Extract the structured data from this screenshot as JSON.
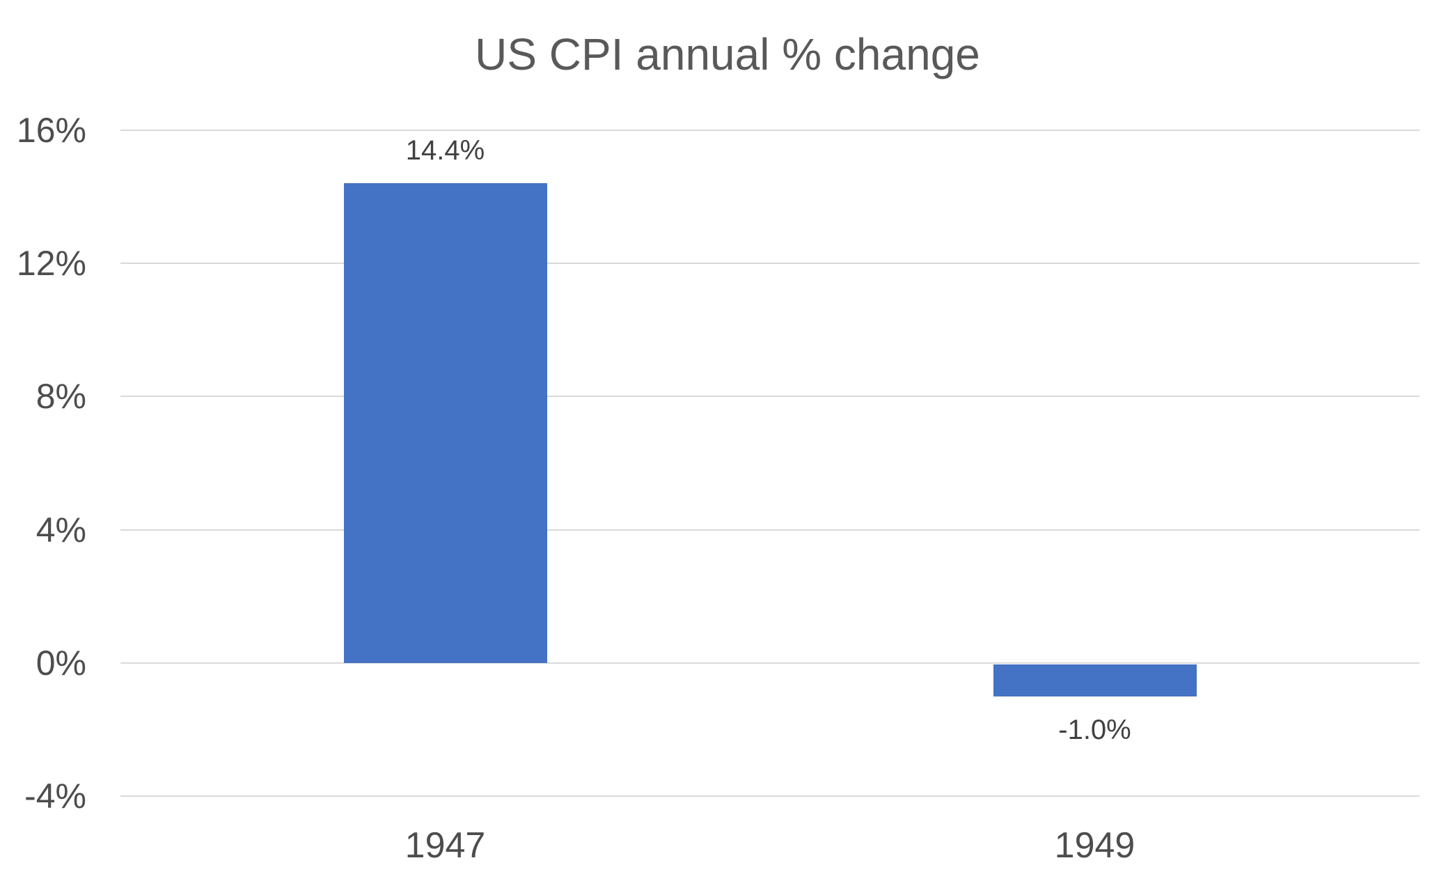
{
  "chart_data": {
    "type": "bar",
    "title": "US CPI annual % change",
    "categories": [
      "1947",
      "1949"
    ],
    "values": [
      14.4,
      -1.0
    ],
    "data_labels": [
      "14.4%",
      "-1.0%"
    ],
    "xlabel": "",
    "ylabel": "",
    "ylim": [
      -4,
      16
    ],
    "yticks": [
      16,
      12,
      8,
      4,
      0,
      -4
    ],
    "ytick_labels": [
      "16%",
      "12%",
      "8%",
      "4%",
      "0%",
      "-4%"
    ],
    "grid": true,
    "legend": false,
    "colors": {
      "background": "#FFFFFF",
      "bar": "#4472C4",
      "gridline": "#D9D9D9",
      "title": "#595959",
      "axis_label": "#4D4D4D",
      "data_label": "#404040"
    }
  }
}
